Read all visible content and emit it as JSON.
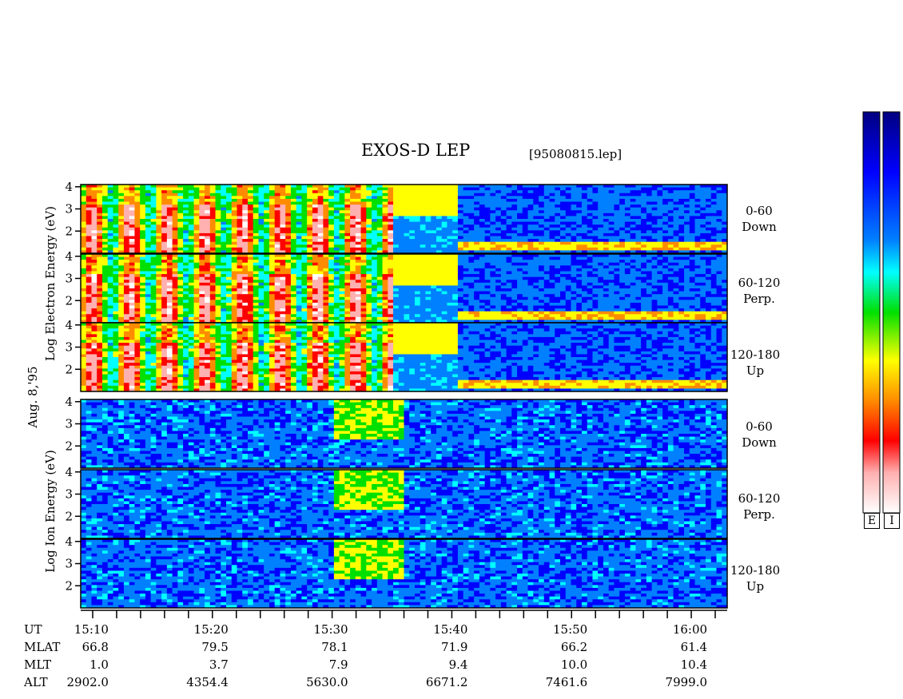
{
  "header": {
    "title": "EXOS-D LEP",
    "file": "[95080815.lep]"
  },
  "date_label": "Aug. 8,'95",
  "electron_ylabel": "Log Electron Energy (eV)",
  "ion_ylabel": "Log Ion Energy (eV)",
  "channels": [
    {
      "range": "0-60",
      "dir": "Down"
    },
    {
      "range": "60-120",
      "dir": "Perp."
    },
    {
      "range": "120-180",
      "dir": "Up"
    }
  ],
  "colorbar_labels": [
    "E",
    "I"
  ],
  "orbit": {
    "rows": [
      {
        "name": "UT",
        "values": [
          "15:10",
          "15:20",
          "15:30",
          "15:40",
          "15:50",
          "16:00"
        ]
      },
      {
        "name": "MLAT",
        "values": [
          "66.8",
          "79.5",
          "78.1",
          "71.9",
          "66.2",
          "61.4"
        ]
      },
      {
        "name": "MLT",
        "values": [
          "1.0",
          "3.7",
          "7.9",
          "9.4",
          "10.0",
          "10.4"
        ]
      },
      {
        "name": "ALT",
        "values": [
          "2902.0",
          "4354.4",
          "5630.0",
          "6671.2",
          "7461.6",
          "7999.0"
        ]
      }
    ]
  },
  "chart_data": {
    "type": "heatmap",
    "title": "EXOS-D LEP",
    "x_range_ut": [
      "15:09",
      "16:03"
    ],
    "x_tick_labels": [
      "15:10",
      "15:20",
      "15:30",
      "15:40",
      "15:50",
      "16:00"
    ],
    "y_tick_labels": [
      "4",
      "3",
      "2"
    ],
    "y_range_log_ev": [
      1,
      4.1
    ],
    "panels": [
      {
        "species": "electron",
        "channel": "0-60 Down"
      },
      {
        "species": "electron",
        "channel": "60-120 Perp."
      },
      {
        "species": "electron",
        "channel": "120-180 Up"
      },
      {
        "species": "ion",
        "channel": "0-60 Down"
      },
      {
        "species": "ion",
        "channel": "60-120 Perp."
      },
      {
        "species": "ion",
        "channel": "120-180 Up"
      }
    ],
    "colormap": [
      "#ffffff",
      "#ffb0b0",
      "#ff0000",
      "#ff8c00",
      "#ffff00",
      "#00e000",
      "#00ffff",
      "#0080ff",
      "#0000ff",
      "#000080"
    ]
  }
}
